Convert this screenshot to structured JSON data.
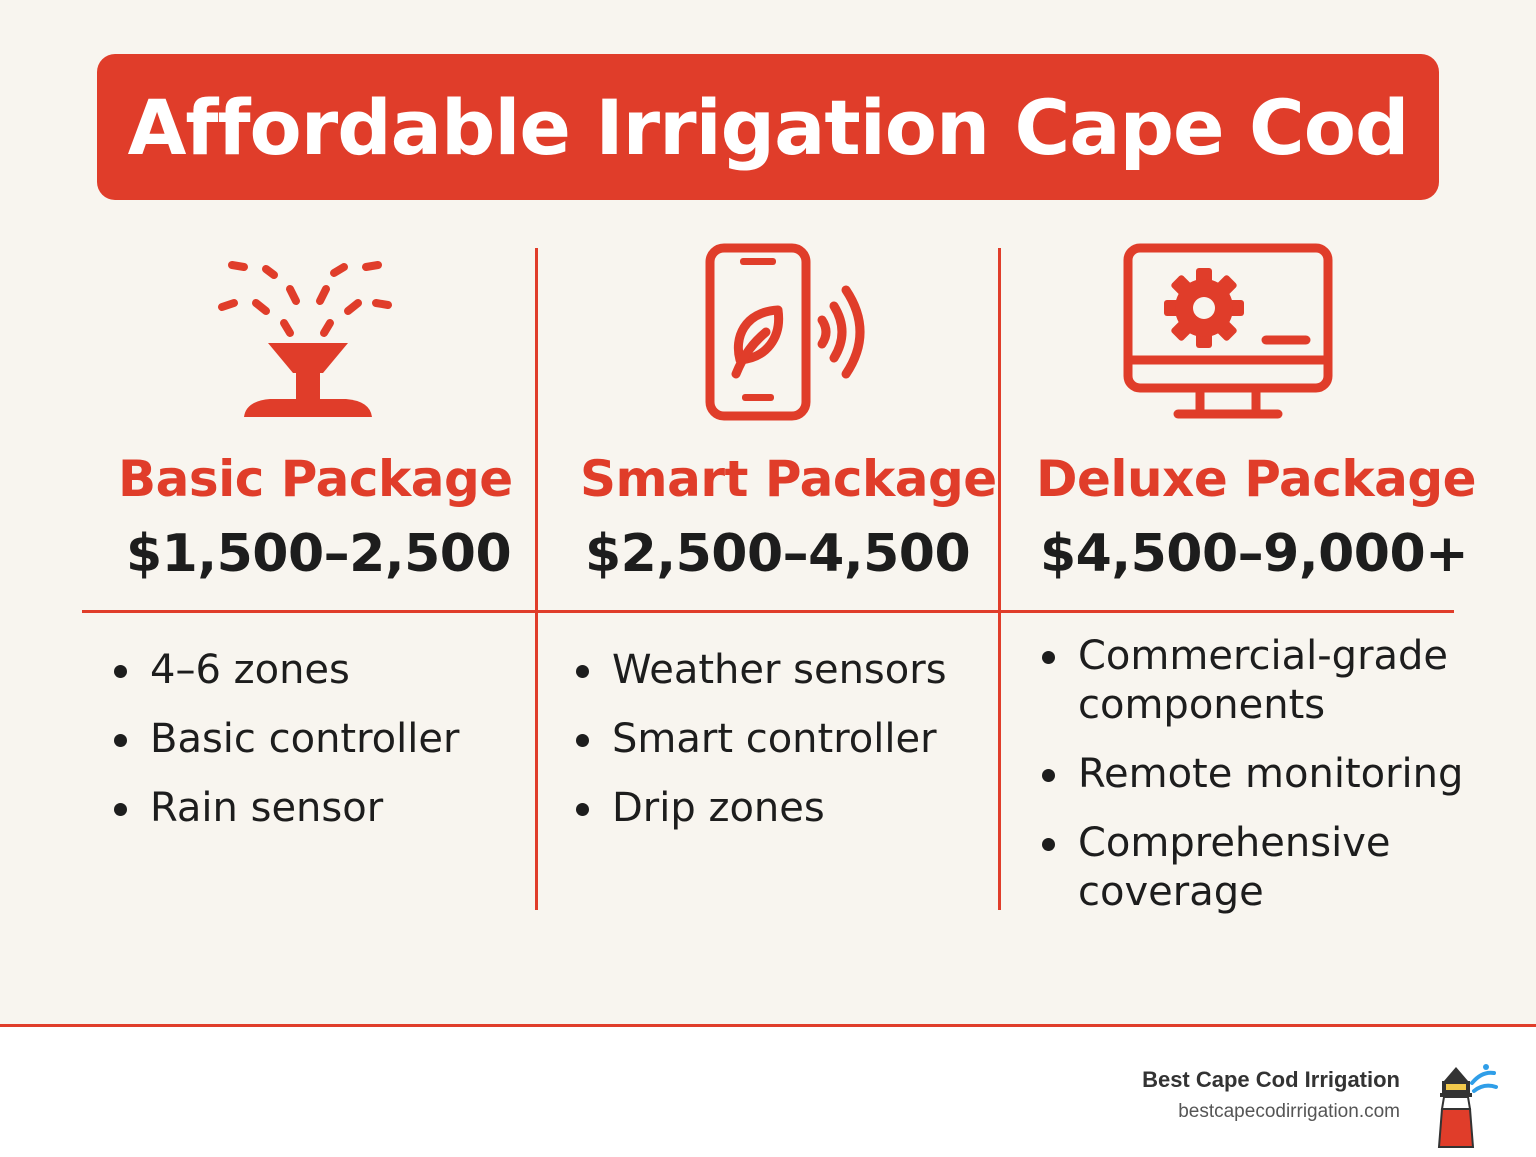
{
  "title": "Affordable Irrigation Cape Cod",
  "colors": {
    "accent": "#e03d2a",
    "background": "#f8f5ef",
    "text": "#1d1d1d"
  },
  "packages": [
    {
      "name": "Basic Package",
      "price": "$1,500–2,500",
      "icon": "sprinkler-icon",
      "features": [
        "4–6 zones",
        "Basic controller",
        "Rain sensor"
      ]
    },
    {
      "name": "Smart Package",
      "price": "$2,500–4,500",
      "icon": "smartphone-leaf-icon",
      "features": [
        "Weather sensors",
        "Smart controller",
        "Drip zones"
      ]
    },
    {
      "name": "Deluxe Package",
      "price": "$4,500–9,000+",
      "icon": "monitor-gear-icon",
      "features": [
        "Commercial-grade components",
        "Remote monitoring",
        "Comprehensive coverage"
      ]
    }
  ],
  "footer": {
    "brand": "Best Cape Cod Irrigation",
    "url": "bestcapecodirrigation.com",
    "logo_icon": "lighthouse-icon"
  }
}
